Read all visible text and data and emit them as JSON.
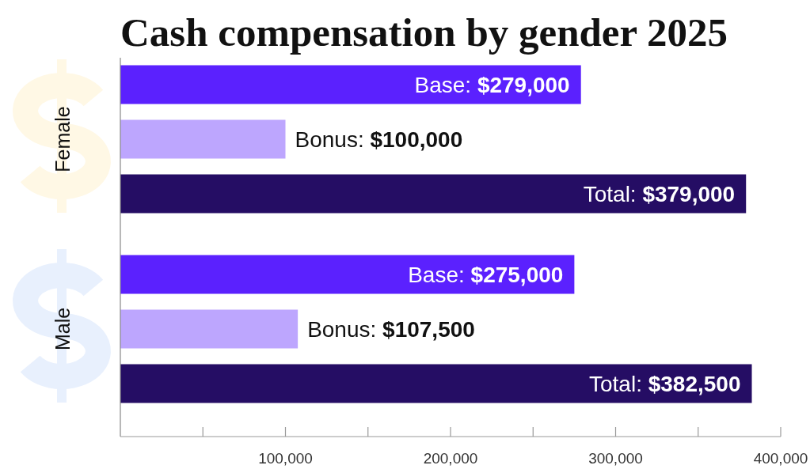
{
  "chart_data": {
    "type": "bar",
    "orientation": "horizontal",
    "title": "Cash compensation by gender 2025",
    "categories": [
      "Female",
      "Male"
    ],
    "series": [
      {
        "color": "#5b21fe",
        "values": [
          279000,
          275000
        ],
        "value_labels": [
          "Base: $279,000",
          "Base: $275,000"
        ]
      },
      {
        "color": "#bda6fe",
        "values": [
          100000,
          107500
        ],
        "value_labels": [
          "Bonus: $100,000",
          "Bonus: $107,500"
        ]
      },
      {
        "color": "#250d64",
        "values": [
          379000,
          382500
        ],
        "value_labels": [
          "Total: $379,000",
          "Total: $382,500"
        ]
      }
    ],
    "xlim": [
      0,
      400000
    ],
    "xticks": [
      {
        "value": 50000,
        "label": null
      },
      {
        "value": 100000,
        "label": "100,000"
      },
      {
        "value": 150000,
        "label": null
      },
      {
        "value": 200000,
        "label": "200,000"
      },
      {
        "value": 250000,
        "label": null
      },
      {
        "value": 300000,
        "label": "300,000"
      },
      {
        "value": 350000,
        "label": null
      },
      {
        "value": 400000,
        "label": "400,000"
      }
    ]
  }
}
